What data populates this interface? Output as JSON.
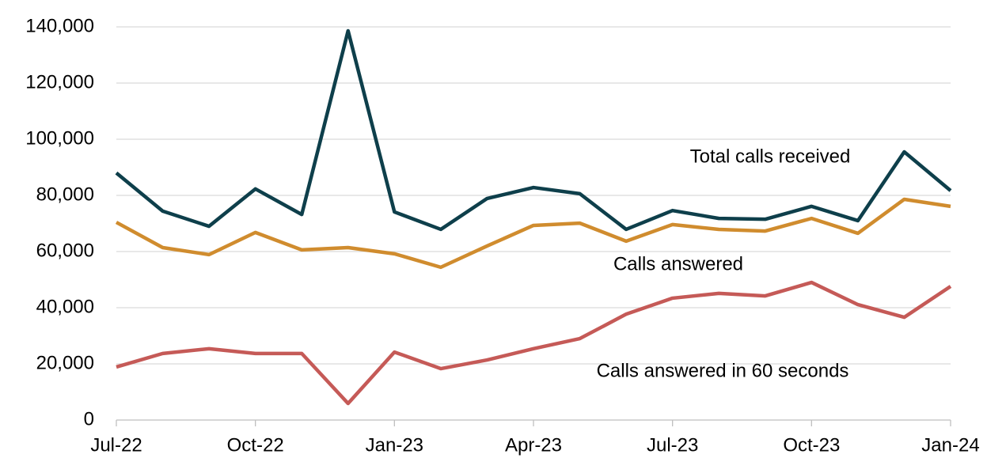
{
  "chart_data": {
    "type": "line",
    "categories": [
      "Jul-22",
      null,
      null,
      "Oct-22",
      null,
      null,
      "Jan-23",
      null,
      null,
      "Apr-23",
      null,
      null,
      "Jul-23",
      null,
      null,
      "Oct-23",
      null,
      null,
      "Jan-24"
    ],
    "series": [
      {
        "name": "Total calls received",
        "color": "#0e3f4b",
        "values": [
          88000,
          74400,
          69000,
          82300,
          73200,
          138600,
          74100,
          67900,
          78900,
          82800,
          80600,
          67900,
          74600,
          71800,
          71500,
          76100,
          71000,
          95500,
          81700
        ]
      },
      {
        "name": "Calls answered",
        "color": "#d08c2e",
        "values": [
          70400,
          61400,
          58900,
          66800,
          60600,
          61400,
          59200,
          54400,
          62000,
          69300,
          70100,
          63700,
          69600,
          67900,
          67300,
          71800,
          66500,
          78600,
          76100
        ]
      },
      {
        "name": "Calls answered in 60 seconds",
        "color": "#c55a57",
        "values": [
          18900,
          23700,
          25400,
          23700,
          23700,
          5900,
          24200,
          18300,
          21400,
          25400,
          29000,
          37700,
          43400,
          45100,
          44200,
          49000,
          41100,
          36600,
          47600
        ]
      }
    ],
    "ylim": [
      0,
      140000
    ],
    "yticks": [
      0,
      {
        "value": 20000,
        "label": "20,000"
      },
      {
        "value": 40000,
        "label": "40,000"
      },
      {
        "value": 60000,
        "label": "60,000"
      },
      {
        "value": 80000,
        "label": "80,000"
      },
      {
        "value": 100000,
        "label": "100,000"
      },
      {
        "value": 120000,
        "label": "120,000"
      },
      {
        "value": 140000,
        "label": "140,000"
      }
    ],
    "grid": true
  }
}
